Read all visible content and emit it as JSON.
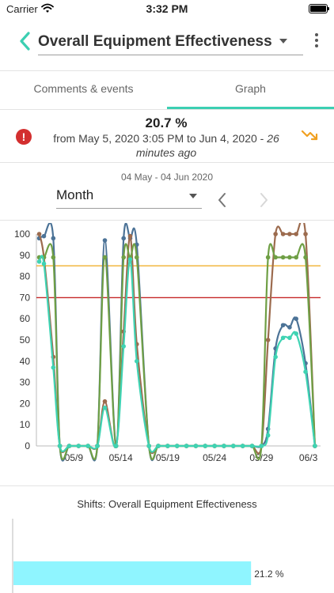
{
  "status_bar": {
    "carrier": "Carrier",
    "time": "3:32 PM"
  },
  "header": {
    "title": "Overall Equipment Effectiveness"
  },
  "tabs": [
    {
      "label": "Comments & events",
      "active": false
    },
    {
      "label": "Graph",
      "active": true
    }
  ],
  "summary": {
    "value": "20.7 %",
    "range_text": "from May 5, 2020 3:05 PM to Jun 4, 2020 - ",
    "ago_text": "26 minutes ago"
  },
  "period": {
    "range": "04 May - 04 Jun 2020",
    "selected": "Month"
  },
  "colors": {
    "accent": "#3ccfb2",
    "alert": "#d32f2f",
    "trend": "#f0a020",
    "target_line": "#f0b030",
    "limit_line": "#c62828"
  },
  "chart_data": [
    {
      "type": "line",
      "title": "",
      "x_tick_labels": [
        "05/9",
        "05/14",
        "05/19",
        "05/24",
        "05/29",
        "06/3"
      ],
      "x_tick_days": [
        4,
        9,
        14,
        19,
        24,
        29
      ],
      "x_range": [
        0,
        30.3
      ],
      "ylim": [
        0,
        100
      ],
      "y_ticks": [
        0,
        10,
        20,
        30,
        40,
        50,
        60,
        70,
        80,
        90,
        100
      ],
      "reference_lines": [
        {
          "value": 85,
          "color": "#f0b030"
        },
        {
          "value": 70,
          "color": "#c62828"
        }
      ],
      "series": [
        {
          "color": "#4c7397",
          "x": [
            0.3,
            0.8,
            1.8,
            2.5,
            3.5,
            4.5,
            5.5,
            6.5,
            7.3,
            8.5,
            9.3,
            10.0,
            10.7,
            12.0,
            13.0,
            14.0,
            15.0,
            16.0,
            17.0,
            18.0,
            19.0,
            20.0,
            21.0,
            22.0,
            23.0,
            24.0,
            24.7,
            25.5,
            26.3,
            27.0,
            27.7,
            28.7,
            29.7
          ],
          "values": [
            98,
            99,
            98,
            0,
            0,
            0,
            0,
            0,
            97,
            0,
            98,
            98,
            95,
            0,
            0,
            0,
            0,
            0,
            0,
            0,
            0,
            0,
            0,
            0,
            0,
            0,
            8,
            46,
            57,
            56,
            60,
            39,
            0
          ]
        },
        {
          "color": "#9c6b4e",
          "x": [
            0.3,
            0.8,
            1.8,
            2.5,
            3.5,
            4.5,
            5.5,
            6.5,
            7.3,
            8.5,
            9.3,
            10.0,
            10.7,
            12.0,
            13.0,
            14.0,
            15.0,
            16.0,
            17.0,
            18.0,
            19.0,
            20.0,
            21.0,
            22.0,
            23.0,
            24.0,
            24.7,
            25.5,
            26.3,
            27.0,
            27.7,
            28.7,
            29.7
          ],
          "values": [
            100,
            89,
            42,
            0,
            0,
            0,
            0,
            0,
            21,
            0,
            54,
            99,
            48,
            0,
            0,
            0,
            0,
            0,
            0,
            0,
            0,
            0,
            0,
            0,
            0,
            0,
            50,
            100,
            100,
            100,
            100,
            100,
            0
          ]
        },
        {
          "color": "#6f9f45",
          "x": [
            0.3,
            0.8,
            1.8,
            2.5,
            3.5,
            4.5,
            5.5,
            6.5,
            7.3,
            8.5,
            9.3,
            10.0,
            10.7,
            12.0,
            13.0,
            14.0,
            15.0,
            16.0,
            17.0,
            18.0,
            19.0,
            20.0,
            21.0,
            22.0,
            23.0,
            24.0,
            24.7,
            25.5,
            26.3,
            27.0,
            27.7,
            28.7,
            29.7
          ],
          "values": [
            89,
            89,
            89,
            0,
            0,
            0,
            0,
            0,
            89,
            0,
            89,
            89,
            89,
            0,
            0,
            0,
            0,
            0,
            0,
            0,
            0,
            0,
            0,
            0,
            0,
            0,
            89,
            89,
            89,
            89,
            89,
            89,
            0
          ]
        },
        {
          "color": "#3fd3b3",
          "x": [
            0.3,
            0.8,
            1.8,
            2.5,
            3.5,
            4.5,
            5.5,
            6.5,
            7.3,
            8.5,
            9.3,
            10.0,
            10.7,
            12.0,
            13.0,
            14.0,
            15.0,
            16.0,
            17.0,
            18.0,
            19.0,
            20.0,
            21.0,
            22.0,
            23.0,
            24.0,
            24.7,
            25.5,
            26.3,
            27.0,
            27.7,
            28.7,
            29.7
          ],
          "values": [
            87,
            86,
            37,
            0,
            0,
            0,
            0,
            0,
            18,
            0,
            47,
            88,
            40,
            0,
            0,
            0,
            0,
            0,
            0,
            0,
            0,
            0,
            0,
            0,
            0,
            0,
            5,
            42,
            51,
            51,
            53,
            35,
            0
          ]
        }
      ]
    },
    {
      "type": "bar",
      "title": "Shifts: Overall Equipment Effectiveness",
      "orientation": "horizontal",
      "xlim": [
        0,
        25
      ],
      "bars": [
        {
          "value": 21.2,
          "label": "21.2 %",
          "color": "#8ff5ff"
        }
      ]
    }
  ]
}
